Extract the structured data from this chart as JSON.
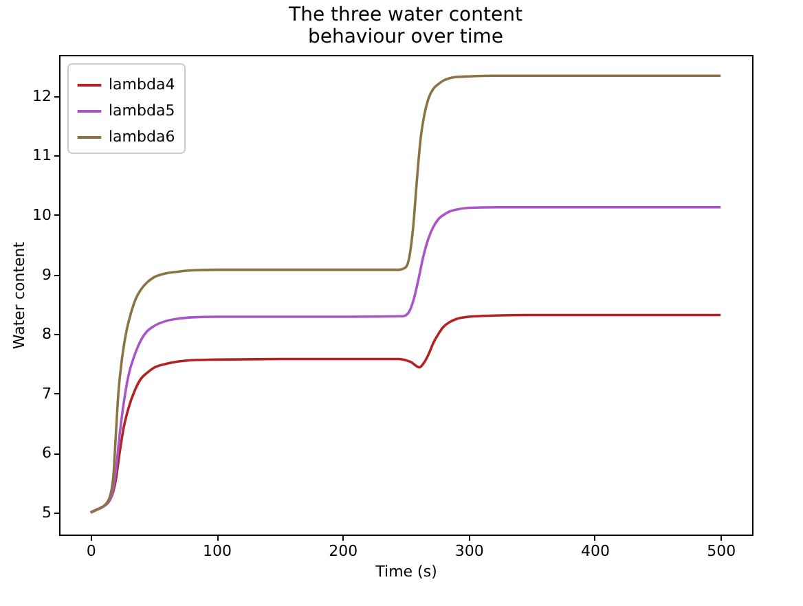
{
  "chart_data": {
    "type": "line",
    "title": "The three water content\nbehaviour over time",
    "xlabel": "Time (s)",
    "ylabel": "Water content",
    "xlim": [
      -25,
      525
    ],
    "ylim": [
      4.63,
      12.69
    ],
    "xticks": [
      0,
      100,
      200,
      300,
      400,
      500
    ],
    "yticks": [
      5,
      6,
      7,
      8,
      9,
      10,
      11,
      12
    ],
    "legend": "top left",
    "grid": false,
    "series": [
      {
        "name": "lambda4",
        "color": "#b22222",
        "x": [
          0,
          5,
          10,
          15,
          18,
          20,
          23,
          26,
          30,
          35,
          40,
          45,
          50,
          60,
          70,
          80,
          100,
          150,
          200,
          245,
          250,
          255,
          258,
          261,
          264,
          268,
          272,
          276,
          280,
          285,
          290,
          300,
          320,
          350,
          400,
          500
        ],
        "values": [
          5,
          5.05,
          5.1,
          5.2,
          5.35,
          5.55,
          6.0,
          6.4,
          6.75,
          7.05,
          7.25,
          7.35,
          7.43,
          7.5,
          7.54,
          7.56,
          7.57,
          7.58,
          7.58,
          7.58,
          7.56,
          7.52,
          7.47,
          7.44,
          7.5,
          7.65,
          7.85,
          8.0,
          8.12,
          8.2,
          8.25,
          8.29,
          8.31,
          8.32,
          8.32,
          8.32
        ]
      },
      {
        "name": "lambda5",
        "color": "#a855c5",
        "x": [
          0,
          5,
          10,
          15,
          18,
          20,
          23,
          26,
          30,
          35,
          40,
          45,
          50,
          60,
          70,
          80,
          100,
          150,
          200,
          248,
          252,
          256,
          260,
          264,
          268,
          272,
          276,
          280,
          285,
          290,
          300,
          320,
          350,
          400,
          500
        ],
        "values": [
          5,
          5.05,
          5.1,
          5.2,
          5.4,
          5.7,
          6.3,
          6.8,
          7.3,
          7.65,
          7.9,
          8.05,
          8.13,
          8.22,
          8.26,
          8.28,
          8.29,
          8.29,
          8.29,
          8.3,
          8.35,
          8.55,
          8.9,
          9.3,
          9.6,
          9.8,
          9.93,
          10.0,
          10.06,
          10.09,
          10.12,
          10.13,
          10.13,
          10.13,
          10.13
        ]
      },
      {
        "name": "lambda6",
        "color": "#8b7346",
        "x": [
          0,
          5,
          10,
          15,
          18,
          20,
          22,
          25,
          28,
          32,
          36,
          40,
          45,
          50,
          60,
          70,
          80,
          100,
          150,
          200,
          245,
          250,
          253,
          256,
          259,
          262,
          265,
          268,
          272,
          276,
          280,
          285,
          290,
          300,
          320,
          350,
          400,
          500
        ],
        "values": [
          5,
          5.05,
          5.1,
          5.25,
          5.6,
          6.3,
          7.0,
          7.6,
          8.0,
          8.35,
          8.6,
          8.75,
          8.87,
          8.95,
          9.02,
          9.05,
          9.07,
          9.08,
          9.08,
          9.08,
          9.08,
          9.12,
          9.3,
          9.8,
          10.6,
          11.3,
          11.7,
          11.95,
          12.12,
          12.2,
          12.26,
          12.3,
          12.32,
          12.33,
          12.34,
          12.34,
          12.34,
          12.34
        ]
      }
    ]
  }
}
